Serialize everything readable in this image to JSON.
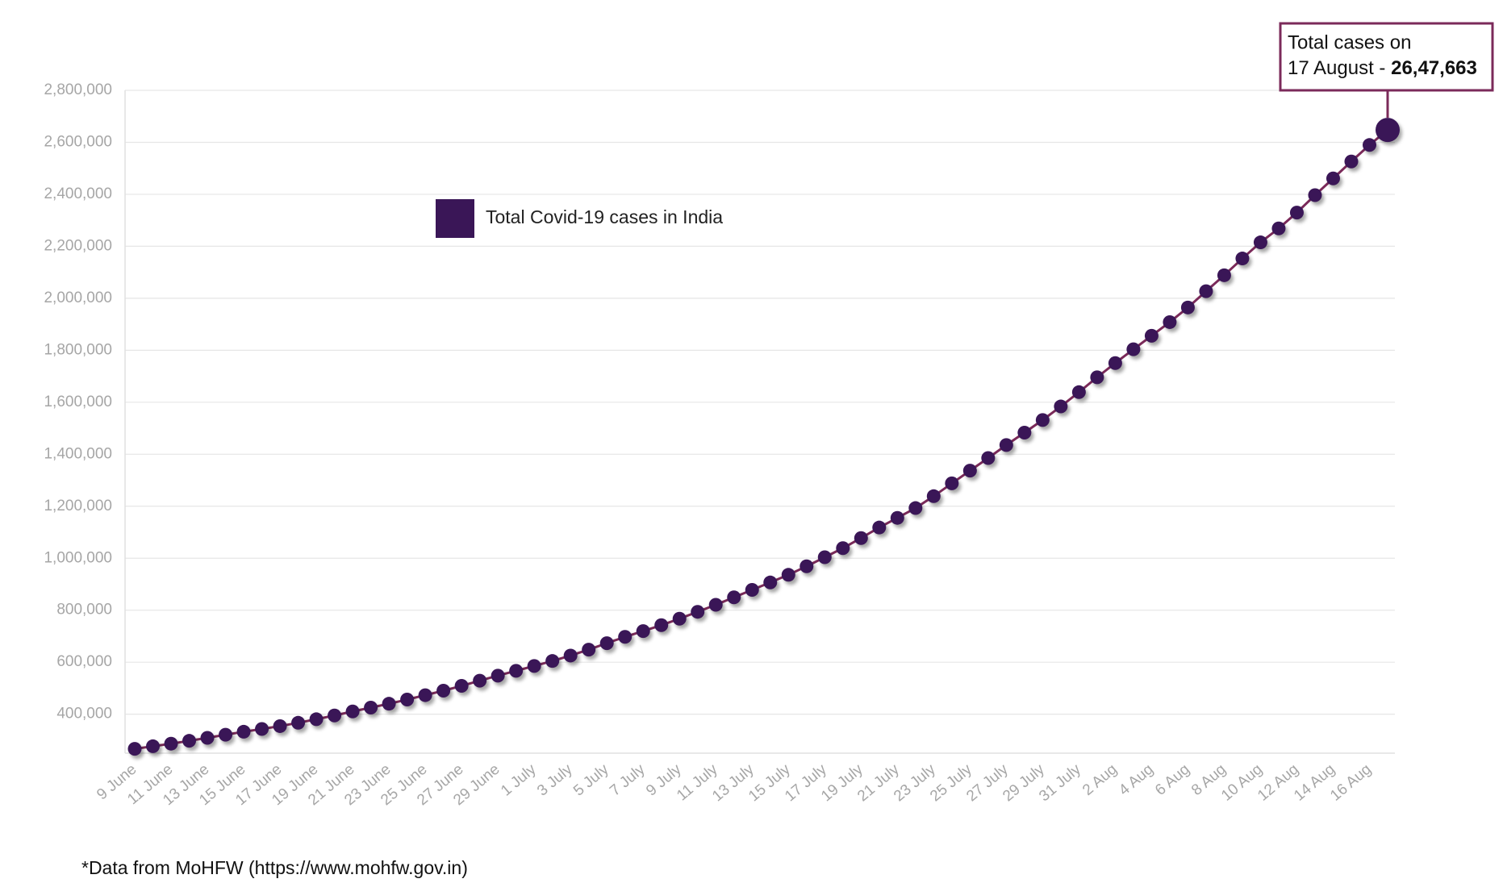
{
  "chart_data": {
    "type": "line",
    "categories": [
      "9 June",
      null,
      "11 June",
      null,
      "13 June",
      null,
      "15 June",
      null,
      "17 June",
      null,
      "19 June",
      null,
      "21 June",
      null,
      "23 June",
      null,
      "25 June",
      null,
      "27 June",
      null,
      "29 June",
      null,
      "1 July",
      null,
      "3 July",
      null,
      "5 July",
      null,
      "7 July",
      null,
      "9 July",
      null,
      "11 July",
      null,
      "13 July",
      null,
      "15 July",
      null,
      "17 July",
      null,
      "19 July",
      null,
      "21 July",
      null,
      "23 July",
      null,
      "25 July",
      null,
      "27 July",
      null,
      "29 July",
      null,
      "31 July",
      null,
      "2 Aug",
      null,
      "4 Aug",
      null,
      "6 Aug",
      null,
      "8 Aug",
      null,
      "10 Aug",
      null,
      "12 Aug",
      null,
      "14 Aug",
      null,
      "16 Aug",
      null
    ],
    "series": [
      {
        "name": "Total Covid-19 cases in India",
        "color": "#3a1657",
        "line_color": "#7b2a5a",
        "values": [
          266598,
          276583,
          286579,
          297535,
          308993,
          320922,
          332424,
          343091,
          354065,
          366946,
          380532,
          395048,
          410461,
          425282,
          440215,
          456183,
          473105,
          490401,
          508953,
          528859,
          548318,
          566840,
          585493,
          604641,
          625544,
          648315,
          673165,
          697413,
          719665,
          742417,
          767296,
          793802,
          820916,
          849553,
          878254,
          906752,
          936181,
          968876,
          1003832,
          1038716,
          1077618,
          1118043,
          1155191,
          1192915,
          1238635,
          1287945,
          1336861,
          1385522,
          1435453,
          1483156,
          1531669,
          1583792,
          1638870,
          1695988,
          1750723,
          1803695,
          1855745,
          1908254,
          1964536,
          2027074,
          2088611,
          2153010,
          2215074,
          2268675,
          2329638,
          2396637,
          2461190,
          2526192,
          2589682,
          2647663
        ],
        "value_labels": [
          null,
          null,
          null,
          null,
          null,
          null,
          null,
          null,
          null,
          null,
          null,
          null,
          null,
          null,
          null,
          null,
          null,
          null,
          null,
          null,
          null,
          null,
          null,
          null,
          null,
          null,
          null,
          null,
          null,
          null,
          null,
          null,
          null,
          null,
          null,
          null,
          null,
          null,
          null,
          null,
          null,
          null,
          null,
          null,
          null,
          null,
          null,
          null,
          null,
          null,
          null,
          null,
          null,
          null,
          null,
          null,
          null,
          null,
          null,
          null,
          null,
          null,
          null,
          null,
          null,
          null,
          null,
          null,
          null,
          "26,47,663"
        ]
      }
    ],
    "annotation": [
      "Total cases on",
      "17 August -"
    ],
    "ylim": [
      250000,
      2800000
    ],
    "yticks": [
      {
        "value": 400000,
        "label": "400,000"
      },
      {
        "value": 600000,
        "label": "600,000"
      },
      {
        "value": 800000,
        "label": "800,000"
      },
      {
        "value": 1000000,
        "label": "1,000,000"
      },
      {
        "value": 1200000,
        "label": "1,200,000"
      },
      {
        "value": 1400000,
        "label": "1,400,000"
      },
      {
        "value": 1600000,
        "label": "1,600,000"
      },
      {
        "value": 1800000,
        "label": "1,800,000"
      },
      {
        "value": 2000000,
        "label": "2,000,000"
      },
      {
        "value": 2200000,
        "label": "2,200,000"
      },
      {
        "value": 2400000,
        "label": "2,400,000"
      },
      {
        "value": 2600000,
        "label": "2,600,000"
      },
      {
        "value": 2800000,
        "label": "2,800,000"
      }
    ],
    "grid": true,
    "footnote": "*Data from MoHFW (https://www.mohfw.gov.in)"
  }
}
